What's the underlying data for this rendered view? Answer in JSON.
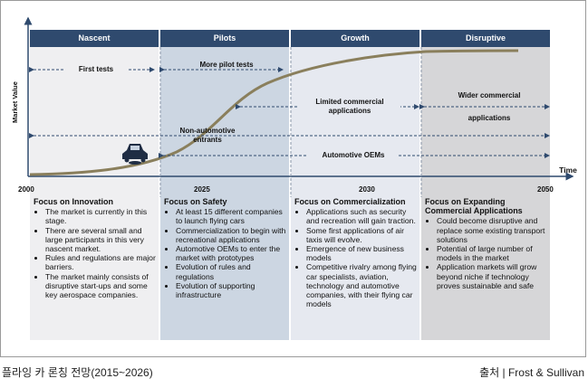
{
  "axis": {
    "y_label": "Market Value",
    "x_label": "Time"
  },
  "phases": [
    {
      "name": "Nascent"
    },
    {
      "name": "Pilots"
    },
    {
      "name": "Growth"
    },
    {
      "name": "Disruptive"
    }
  ],
  "years": [
    "2000",
    "2025",
    "2030",
    "2050"
  ],
  "labels": {
    "first_tests": "First tests",
    "more_pilot_tests": "More pilot tests",
    "limited_commercial": "Limited commercial applications",
    "wider_commercial_1": "Wider commercial",
    "wider_commercial_2": "applications",
    "non_automotive": "Non-automotive entrants",
    "automotive_oems": "Automotive OEMs"
  },
  "columns": [
    {
      "title": "Focus on Innovation",
      "bullets": [
        "The market is currently in this stage.",
        "There are several small and large participants in this very nascent market.",
        "Rules and regulations are major barriers.",
        "The market mainly consists of disruptive start-ups and some key aerospace companies."
      ]
    },
    {
      "title": "Focus on Safety",
      "bullets": [
        "At least 15 different companies to launch flying cars",
        "Commercialization to begin with recreational applications",
        "Automotive OEMs to enter the market with prototypes",
        "Evolution of rules and regulations",
        "Evolution of supporting infrastructure"
      ]
    },
    {
      "title": "Focus on Commercialization",
      "bullets": [
        "Applications such as security and recreation will gain traction.",
        "Some first applications of air taxis will evolve.",
        "Emergence of new business models",
        "Competitive rivalry among flying car specialists, aviation, technology and automotive companies, with their flying car models"
      ]
    },
    {
      "title": "Focus on Expanding Commercial Applications",
      "bullets": [
        "Could become disruptive and replace some existing transport solutions",
        "Potential of large number of models in the market",
        "Application markets will grow beyond niche if technology proves sustainable and safe"
      ]
    }
  ],
  "caption_left": "플라잉 카 론칭 전망(2015~2026)",
  "caption_right": "출처 | Frost & Sullivan",
  "colors": {
    "header": "#2f4a6e",
    "curve": "#8a7f5c",
    "nascent_bg": "#efeff1",
    "pilots_bg": "#ccd6e2",
    "growth_bg": "#e6e9f0",
    "disruptive_bg": "#d6d6d8",
    "axis": "#2f4a6e"
  },
  "icons": [
    "car-icon"
  ]
}
